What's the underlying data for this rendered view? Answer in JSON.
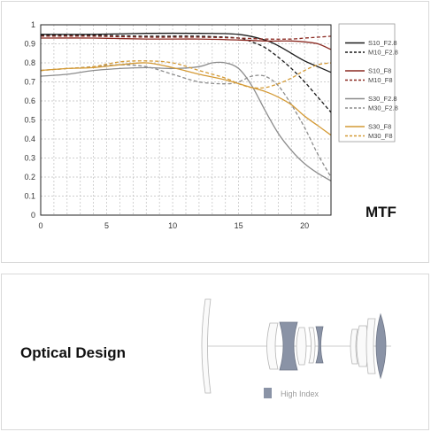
{
  "mtf_panel": {
    "heading": "MTF"
  },
  "optical_panel": {
    "heading": "Optical Design",
    "legend_label": "High Index",
    "high_index_color": "#8a93a6"
  },
  "chart_data": {
    "type": "line",
    "title": "MTF",
    "xlabel": "",
    "ylabel": "",
    "xlim": [
      0,
      22
    ],
    "ylim": [
      0,
      1
    ],
    "x_ticks": [
      0,
      5,
      10,
      15,
      20
    ],
    "y_ticks": [
      0,
      0.1,
      0.2,
      0.3,
      0.4,
      0.5,
      0.6,
      0.7,
      0.8,
      0.9,
      1
    ],
    "y_tick_labels": [
      "0",
      "0.1",
      "0.2",
      "0.3",
      "0.4",
      "0.5",
      "0.6",
      "0.7",
      "0.8",
      "0.9",
      "1"
    ],
    "grid": true,
    "legend_position": "right",
    "legend_groups": [
      [
        "S10_F2.8",
        "M10_F2.8"
      ],
      [
        "S10_F8",
        "M10_F8"
      ],
      [
        "S30_F2.8",
        "M30_F2.8"
      ],
      [
        "S30_F8",
        "M30_F8"
      ]
    ],
    "series": [
      {
        "name": "S10_F2.8",
        "color": "#1a1a1a",
        "dash": "solid",
        "x": [
          0,
          4,
          8,
          12,
          15,
          17,
          18,
          19,
          20,
          21,
          22
        ],
        "y": [
          0.95,
          0.95,
          0.955,
          0.955,
          0.95,
          0.92,
          0.89,
          0.85,
          0.81,
          0.78,
          0.75
        ]
      },
      {
        "name": "M10_F2.8",
        "color": "#1a1a1a",
        "dash": "dashed",
        "x": [
          0,
          4,
          8,
          12,
          15,
          16,
          17,
          18,
          19,
          20,
          21,
          22
        ],
        "y": [
          0.945,
          0.945,
          0.94,
          0.94,
          0.93,
          0.91,
          0.88,
          0.83,
          0.77,
          0.7,
          0.62,
          0.54
        ]
      },
      {
        "name": "S10_F8",
        "color": "#8b2a22",
        "dash": "solid",
        "x": [
          0,
          4,
          8,
          12,
          15,
          17,
          18,
          19,
          20,
          21,
          22
        ],
        "y": [
          0.93,
          0.93,
          0.925,
          0.925,
          0.92,
          0.915,
          0.915,
          0.915,
          0.91,
          0.9,
          0.87
        ]
      },
      {
        "name": "M10_F8",
        "color": "#8b2a22",
        "dash": "dashed",
        "x": [
          0,
          4,
          8,
          12,
          15,
          17,
          19,
          20,
          21,
          22
        ],
        "y": [
          0.94,
          0.94,
          0.935,
          0.935,
          0.93,
          0.925,
          0.925,
          0.93,
          0.935,
          0.94
        ]
      },
      {
        "name": "S30_F2.8",
        "color": "#8c8c8c",
        "dash": "solid",
        "x": [
          0,
          2,
          4,
          6,
          8,
          10,
          12,
          13,
          14,
          15,
          16,
          17,
          18,
          19,
          20,
          21,
          22
        ],
        "y": [
          0.73,
          0.74,
          0.76,
          0.77,
          0.775,
          0.77,
          0.78,
          0.8,
          0.8,
          0.77,
          0.68,
          0.55,
          0.43,
          0.34,
          0.27,
          0.22,
          0.18
        ]
      },
      {
        "name": "M30_F2.8",
        "color": "#8c8c8c",
        "dash": "dashed",
        "x": [
          0,
          2,
          4,
          6,
          8,
          10,
          12,
          14,
          15,
          16,
          17,
          18,
          19,
          20,
          21,
          22
        ],
        "y": [
          0.76,
          0.77,
          0.78,
          0.79,
          0.78,
          0.74,
          0.7,
          0.69,
          0.7,
          0.73,
          0.73,
          0.68,
          0.58,
          0.46,
          0.32,
          0.2
        ]
      },
      {
        "name": "S30_F8",
        "color": "#d49a35",
        "dash": "solid",
        "x": [
          0,
          2,
          4,
          6,
          8,
          10,
          12,
          14,
          16,
          17,
          18,
          19,
          20,
          21,
          22
        ],
        "y": [
          0.76,
          0.77,
          0.775,
          0.79,
          0.8,
          0.775,
          0.74,
          0.71,
          0.67,
          0.65,
          0.62,
          0.58,
          0.52,
          0.47,
          0.42
        ]
      },
      {
        "name": "M30_F8",
        "color": "#d49a35",
        "dash": "dashed",
        "x": [
          0,
          2,
          4,
          6,
          8,
          10,
          12,
          14,
          15,
          16,
          17,
          18,
          19,
          20,
          21,
          22
        ],
        "y": [
          0.76,
          0.77,
          0.78,
          0.805,
          0.81,
          0.8,
          0.76,
          0.72,
          0.69,
          0.67,
          0.67,
          0.69,
          0.72,
          0.76,
          0.79,
          0.8
        ]
      }
    ]
  }
}
